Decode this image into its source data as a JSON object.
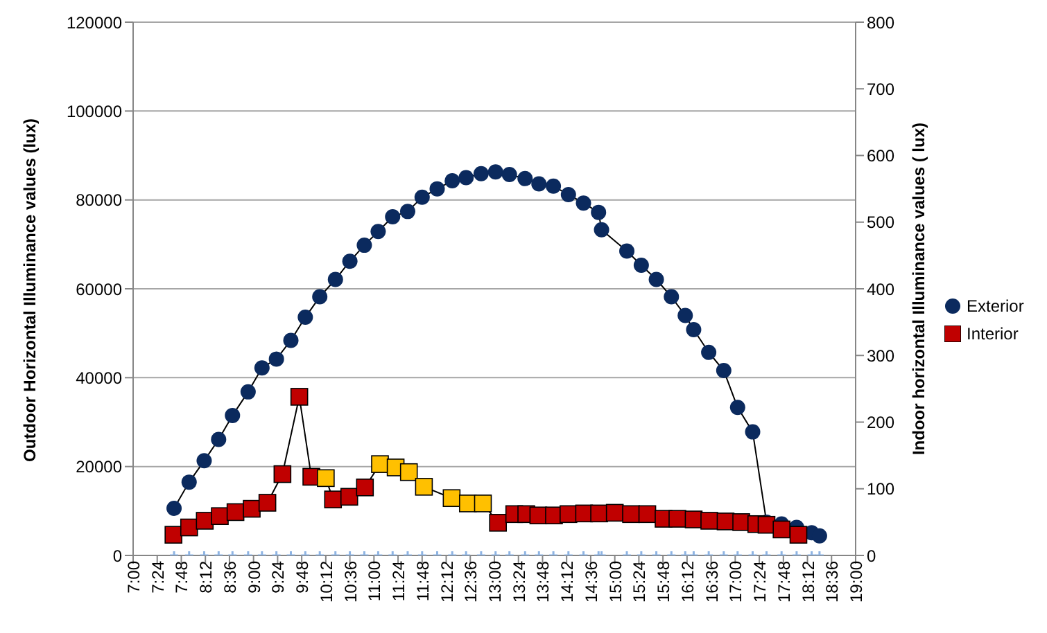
{
  "chart_data": {
    "type": "line",
    "ylabel": "Outdoor Horizontal Illuminance values (lux)",
    "y2label": "Indoor horizontal Illuminance values ( lux)",
    "xlim": [
      7,
      19
    ],
    "xticks": [
      {
        "value": 7,
        "label": "7:00"
      },
      {
        "value": 7.4,
        "label": "7:24"
      },
      {
        "value": 7.8,
        "label": "7:48"
      },
      {
        "value": 8.2,
        "label": "8:12"
      },
      {
        "value": 8.6,
        "label": "8:36"
      },
      {
        "value": 9,
        "label": "9:00"
      },
      {
        "value": 9.4,
        "label": "9:24"
      },
      {
        "value": 9.8,
        "label": "9:48"
      },
      {
        "value": 10.2,
        "label": "10:12"
      },
      {
        "value": 10.6,
        "label": "10:36"
      },
      {
        "value": 11,
        "label": "11:00"
      },
      {
        "value": 11.4,
        "label": "11:24"
      },
      {
        "value": 11.8,
        "label": "11:48"
      },
      {
        "value": 12.2,
        "label": "12:12"
      },
      {
        "value": 12.6,
        "label": "12:36"
      },
      {
        "value": 13,
        "label": "13:00"
      },
      {
        "value": 13.4,
        "label": "13:24"
      },
      {
        "value": 13.8,
        "label": "13:48"
      },
      {
        "value": 14.2,
        "label": "14:12"
      },
      {
        "value": 14.6,
        "label": "14:36"
      },
      {
        "value": 15,
        "label": "15:00"
      },
      {
        "value": 15.4,
        "label": "15:24"
      },
      {
        "value": 15.8,
        "label": "15:48"
      },
      {
        "value": 16.2,
        "label": "16:12"
      },
      {
        "value": 16.6,
        "label": "16:36"
      },
      {
        "value": 17,
        "label": "17:00"
      },
      {
        "value": 17.4,
        "label": "17:24"
      },
      {
        "value": 17.8,
        "label": "17:48"
      },
      {
        "value": 18.2,
        "label": "18:12"
      },
      {
        "value": 18.6,
        "label": "18:36"
      },
      {
        "value": 19,
        "label": "19:00"
      }
    ],
    "ylim": [
      0,
      120000
    ],
    "yticks": [
      0,
      20000,
      40000,
      60000,
      80000,
      100000,
      120000
    ],
    "y2lim": [
      0,
      800
    ],
    "y2ticks": [
      0,
      100,
      200,
      300,
      400,
      500,
      600,
      700,
      800
    ],
    "grid": "y",
    "legend": "right",
    "series": [
      {
        "name": "Exterior",
        "marker": "circle",
        "color": "#0b2a5e",
        "x": [
          7.68,
          7.93,
          8.18,
          8.42,
          8.65,
          8.91,
          9.14,
          9.38,
          9.62,
          9.86,
          10.1,
          10.36,
          10.6,
          10.84,
          11.07,
          11.31,
          11.56,
          11.8,
          12.05,
          12.3,
          12.53,
          12.78,
          13.02,
          13.25,
          13.51,
          13.74,
          13.98,
          14.23,
          14.48,
          14.73,
          14.78,
          15.2,
          15.44,
          15.69,
          15.94,
          16.17,
          16.31,
          16.56,
          16.81,
          17.04,
          17.29,
          17.52,
          17.77,
          18.02,
          18.27,
          18.4
        ],
        "values": [
          10600,
          16500,
          21300,
          26100,
          31500,
          36800,
          42200,
          44200,
          48400,
          53600,
          58200,
          62100,
          66200,
          69800,
          72900,
          76200,
          77400,
          80600,
          82500,
          84300,
          85000,
          85900,
          86300,
          85700,
          84800,
          83600,
          83100,
          81200,
          79300,
          77200,
          73300,
          68500,
          65300,
          62100,
          58200,
          54000,
          50800,
          45700,
          41600,
          33300,
          27800,
          7500,
          7100,
          6300,
          5100,
          4400
        ]
      },
      {
        "name": "Interior",
        "marker": "square",
        "axis": "y2",
        "color": "#c00000",
        "x": [
          7.67,
          7.93,
          8.19,
          8.44,
          8.7,
          8.97,
          9.23,
          9.48,
          9.76,
          9.96,
          10.2,
          10.32,
          10.59,
          10.85,
          11.1,
          11.36,
          11.58,
          11.83,
          12.29,
          12.56,
          12.81,
          13.06,
          13.33,
          13.53,
          13.73,
          13.99,
          14.23,
          14.49,
          14.74,
          15,
          15.27,
          15.54,
          15.81,
          16.04,
          16.31,
          16.57,
          16.84,
          17.1,
          17.35,
          17.52,
          17.77,
          18.05
        ],
        "values": [
          31,
          42,
          52,
          59,
          65,
          70,
          79,
          122,
          238,
          118,
          116,
          84,
          88,
          102,
          137,
          132,
          125,
          103,
          86,
          78,
          78,
          49,
          62,
          62,
          60,
          60,
          62,
          63,
          63,
          64,
          62,
          62,
          55,
          55,
          54,
          52,
          51,
          50,
          47,
          46,
          39,
          31
        ],
        "colors": [
          "#c00000",
          "#c00000",
          "#c00000",
          "#c00000",
          "#c00000",
          "#c00000",
          "#c00000",
          "#c00000",
          "#c00000",
          "#c00000",
          "#ffc000",
          "#c00000",
          "#c00000",
          "#c00000",
          "#ffc000",
          "#ffc000",
          "#ffc000",
          "#ffc000",
          "#ffc000",
          "#ffc000",
          "#ffc000",
          "#c00000",
          "#c00000",
          "#c00000",
          "#c00000",
          "#c00000",
          "#c00000",
          "#c00000",
          "#c00000",
          "#c00000",
          "#c00000",
          "#c00000",
          "#c00000",
          "#c00000",
          "#c00000",
          "#c00000",
          "#c00000",
          "#c00000",
          "#c00000",
          "#c00000",
          "#c00000",
          "#c00000"
        ]
      },
      {
        "type": "scatter",
        "marker": "cross",
        "color": "#8eb4e3",
        "x": [
          7.68,
          7.93,
          8.18,
          8.42,
          8.65,
          8.91,
          9.14,
          9.38,
          9.62,
          9.86,
          10.1,
          10.36,
          10.6,
          10.84,
          11.07,
          11.31,
          11.56,
          11.8,
          12.05,
          12.3,
          12.53,
          12.78,
          13.02,
          13.25,
          13.51,
          13.74,
          13.98,
          14.23,
          14.48,
          14.73,
          14.78,
          15.2,
          15.44,
          15.69,
          15.94,
          16.17,
          16.31,
          16.56,
          16.81,
          17.04,
          17.29,
          17.52,
          17.77,
          18.02,
          18.27,
          18.4
        ],
        "values": [
          0,
          0,
          0,
          0,
          0,
          0,
          0,
          0,
          0,
          0,
          0,
          0,
          0,
          0,
          0,
          0,
          0,
          0,
          0,
          0,
          0,
          0,
          0,
          0,
          0,
          0,
          0,
          0,
          0,
          0,
          0,
          0,
          0,
          0,
          0,
          0,
          0,
          0,
          0,
          0,
          0,
          0,
          0,
          0,
          0,
          0
        ]
      }
    ]
  }
}
